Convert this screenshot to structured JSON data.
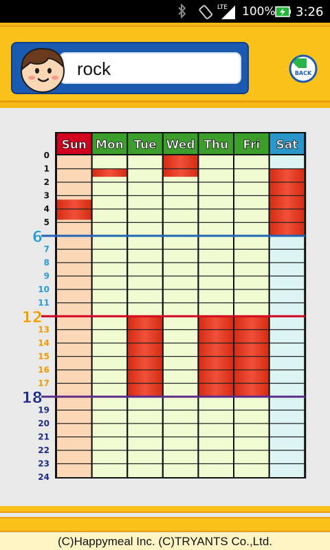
{
  "status_bar": {
    "network": "LTE",
    "battery_percent": "100%",
    "time": "3:26",
    "icons": [
      "bluetooth-icon",
      "screen-rotation-icon",
      "signal-icon",
      "battery-charging-icon"
    ]
  },
  "header": {
    "name": "rock",
    "back_label": "BACK"
  },
  "schedule": {
    "days": [
      {
        "label": "Sun",
        "header_color": "#d1001e",
        "body_color": "#fcd8b9",
        "busy": [
          [
            3.3,
            4.8
          ]
        ]
      },
      {
        "label": "Mon",
        "header_color": "#3c9e2b",
        "body_color": "#f1fbd2",
        "busy": [
          [
            1.0,
            1.6
          ]
        ]
      },
      {
        "label": "Tue",
        "header_color": "#3c9e2b",
        "body_color": "#f1fbd2",
        "busy": [
          [
            12.0,
            18.0
          ]
        ]
      },
      {
        "label": "Wed",
        "header_color": "#3c9e2b",
        "body_color": "#f1fbd2",
        "busy": [
          [
            0.0,
            1.6
          ]
        ]
      },
      {
        "label": "Thu",
        "header_color": "#3c9e2b",
        "body_color": "#f1fbd2",
        "busy": [
          [
            12.0,
            18.0
          ]
        ]
      },
      {
        "label": "Fri",
        "header_color": "#3c9e2b",
        "body_color": "#f1fbd2",
        "busy": [
          [
            12.0,
            18.0
          ]
        ]
      },
      {
        "label": "Sat",
        "header_color": "#2b96c9",
        "body_color": "#dcf4f2",
        "busy": [
          [
            1.0,
            6.0
          ]
        ]
      }
    ],
    "hours": [
      "0",
      "1",
      "2",
      "3",
      "4",
      "5",
      "6",
      "7",
      "8",
      "9",
      "10",
      "11",
      "12",
      "13",
      "14",
      "15",
      "16",
      "17",
      "18",
      "19",
      "20",
      "21",
      "22",
      "23",
      "24"
    ],
    "major_hours": [
      "6",
      "12",
      "18"
    ],
    "colors": {
      "hours_night": "#111111",
      "hours_morning": "#2a9bd6",
      "hours_afternoon": "#f39a00",
      "hours_evening": "#1c2b8a",
      "line_6": "#1e63b6",
      "line_12": "#d1001e",
      "line_18": "#5a2a8a",
      "busy": "#e8442a"
    }
  },
  "footer": {
    "copyright": "(C)Happymeal Inc. (C)TRYANTS Co.,Ltd."
  }
}
